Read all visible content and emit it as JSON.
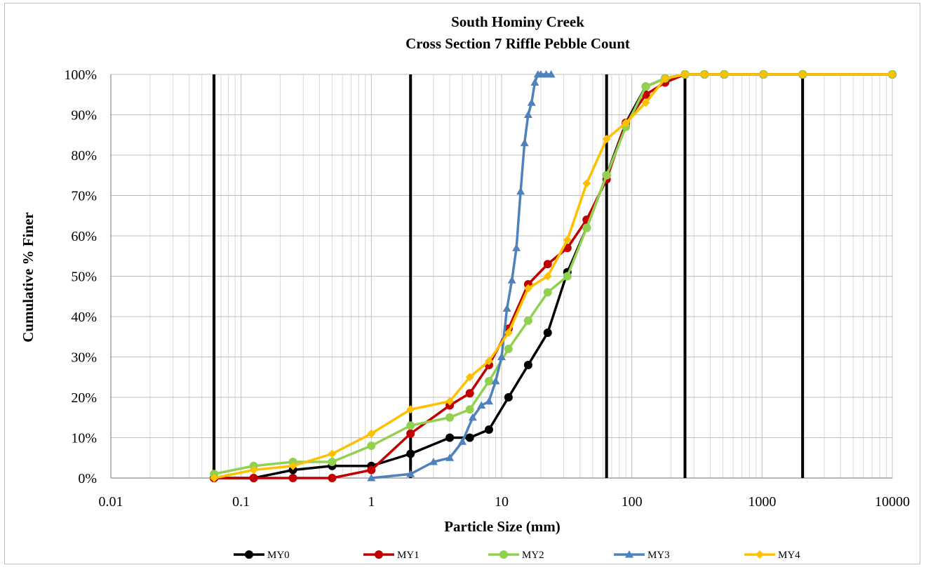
{
  "chart_data": {
    "type": "line",
    "title": "South Hominy Creek",
    "subtitle": "Cross Section 7 Riffle Pebble Count",
    "xlabel": "Particle Size (mm)",
    "ylabel": "Cumulative % Finer",
    "x_scale": "log",
    "xlim": [
      0.01,
      10000
    ],
    "ylim": [
      0,
      100
    ],
    "x_ticks": [
      "0.01",
      "0.1",
      "1",
      "10",
      "100",
      "1000",
      "10000"
    ],
    "y_ticks": [
      "0%",
      "10%",
      "20%",
      "30%",
      "40%",
      "50%",
      "60%",
      "70%",
      "80%",
      "90%",
      "100%"
    ],
    "grid": true,
    "legend_position": "bottom",
    "reference_lines_x": [
      0.062,
      2,
      64,
      256,
      2048
    ],
    "series": [
      {
        "name": "MY0",
        "color": "#000000",
        "marker": "circle",
        "points": [
          [
            0.062,
            0
          ],
          [
            0.125,
            0
          ],
          [
            0.25,
            2
          ],
          [
            0.5,
            3
          ],
          [
            1,
            3
          ],
          [
            2,
            6
          ],
          [
            4,
            10
          ],
          [
            5.7,
            10
          ],
          [
            8,
            12
          ],
          [
            11.3,
            20
          ],
          [
            16,
            28
          ],
          [
            22.6,
            36
          ],
          [
            32,
            51
          ],
          [
            45,
            62
          ],
          [
            64,
            75
          ],
          [
            90,
            88
          ],
          [
            128,
            97
          ],
          [
            180,
            99
          ],
          [
            256,
            100
          ],
          [
            362,
            100
          ],
          [
            512,
            100
          ],
          [
            1024,
            100
          ],
          [
            2048,
            100
          ],
          [
            10000,
            100
          ]
        ]
      },
      {
        "name": "MY1",
        "color": "#c00000",
        "marker": "circle",
        "points": [
          [
            0.062,
            0
          ],
          [
            0.125,
            0
          ],
          [
            0.25,
            0
          ],
          [
            0.5,
            0
          ],
          [
            1,
            2
          ],
          [
            2,
            11
          ],
          [
            4,
            18
          ],
          [
            5.7,
            21
          ],
          [
            8,
            28
          ],
          [
            11.3,
            37
          ],
          [
            16,
            48
          ],
          [
            22.6,
            53
          ],
          [
            32,
            57
          ],
          [
            45,
            64
          ],
          [
            64,
            74
          ],
          [
            90,
            88
          ],
          [
            128,
            95
          ],
          [
            180,
            98
          ],
          [
            256,
            100
          ],
          [
            362,
            100
          ],
          [
            512,
            100
          ],
          [
            1024,
            100
          ],
          [
            2048,
            100
          ],
          [
            10000,
            100
          ]
        ]
      },
      {
        "name": "MY2",
        "color": "#92d050",
        "marker": "circle",
        "points": [
          [
            0.062,
            1
          ],
          [
            0.125,
            3
          ],
          [
            0.25,
            4
          ],
          [
            0.5,
            4
          ],
          [
            1,
            8
          ],
          [
            2,
            13
          ],
          [
            4,
            15
          ],
          [
            5.7,
            17
          ],
          [
            8,
            24
          ],
          [
            11.3,
            32
          ],
          [
            16,
            39
          ],
          [
            22.6,
            46
          ],
          [
            32,
            50
          ],
          [
            45,
            62
          ],
          [
            64,
            75
          ],
          [
            90,
            87
          ],
          [
            128,
            97
          ],
          [
            180,
            99
          ],
          [
            256,
            100
          ],
          [
            362,
            100
          ],
          [
            512,
            100
          ],
          [
            1024,
            100
          ],
          [
            2048,
            100
          ],
          [
            10000,
            100
          ]
        ]
      },
      {
        "name": "MY3",
        "color": "#4f81bd",
        "marker": "triangle",
        "points": [
          [
            1,
            0
          ],
          [
            2,
            1
          ],
          [
            3,
            4
          ],
          [
            4,
            5
          ],
          [
            5,
            9
          ],
          [
            6,
            15
          ],
          [
            7,
            18
          ],
          [
            8,
            19
          ],
          [
            9,
            24
          ],
          [
            10,
            30
          ],
          [
            11,
            42
          ],
          [
            12,
            49
          ],
          [
            13,
            57
          ],
          [
            14,
            71
          ],
          [
            15,
            83
          ],
          [
            16,
            90
          ],
          [
            17,
            93
          ],
          [
            18,
            98
          ],
          [
            19,
            100
          ],
          [
            20,
            100
          ],
          [
            22,
            100
          ],
          [
            24,
            100
          ]
        ]
      },
      {
        "name": "MY4",
        "color": "#ffc000",
        "marker": "diamond",
        "points": [
          [
            0.062,
            0
          ],
          [
            0.125,
            2
          ],
          [
            0.25,
            3
          ],
          [
            0.5,
            6
          ],
          [
            1,
            11
          ],
          [
            2,
            17
          ],
          [
            4,
            19
          ],
          [
            5.7,
            25
          ],
          [
            8,
            29
          ],
          [
            11.3,
            36
          ],
          [
            16,
            47
          ],
          [
            22.6,
            50
          ],
          [
            32,
            59
          ],
          [
            45,
            73
          ],
          [
            64,
            84
          ],
          [
            90,
            88
          ],
          [
            128,
            93
          ],
          [
            180,
            99
          ],
          [
            256,
            100
          ],
          [
            362,
            100
          ],
          [
            512,
            100
          ],
          [
            1024,
            100
          ],
          [
            2048,
            100
          ],
          [
            10000,
            100
          ]
        ]
      }
    ]
  }
}
